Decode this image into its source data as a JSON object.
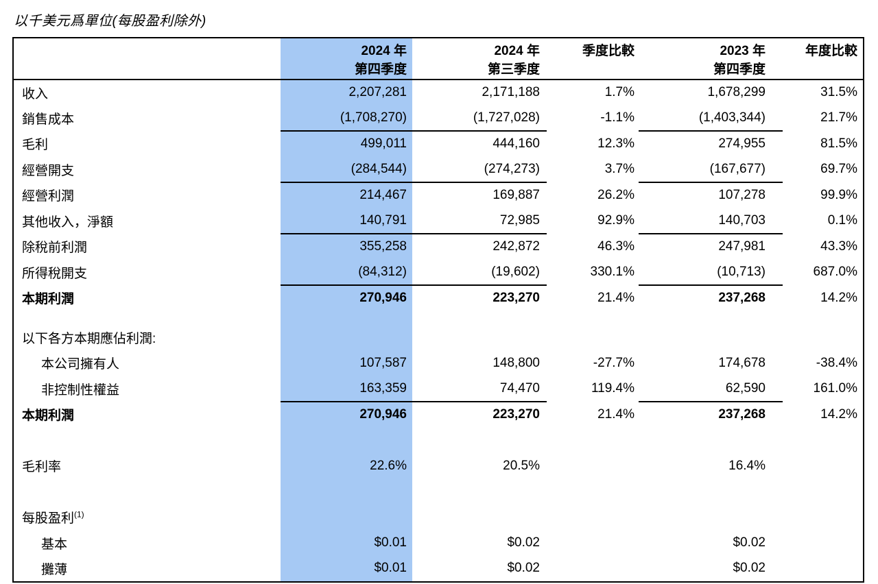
{
  "title": "以千美元爲單位(每股盈利除外)",
  "colors": {
    "highlight_column": "#a6c9f4",
    "border": "#000000",
    "text": "#000000"
  },
  "table": {
    "columns": [
      {
        "label": "2024 年",
        "sublabel": "第四季度"
      },
      {
        "label": "2024 年",
        "sublabel": "第三季度"
      },
      {
        "label": "季度比較",
        "sublabel": ""
      },
      {
        "label": "2023 年",
        "sublabel": "第四季度"
      },
      {
        "label": "年度比較",
        "sublabel": ""
      }
    ],
    "rows": [
      {
        "label": "收入",
        "values": [
          "2,207,281",
          "2,171,188",
          "1.7%",
          "1,678,299",
          "31.5%"
        ]
      },
      {
        "label": "銷售成本",
        "values": [
          "(1,708,270)",
          "(1,727,028)",
          "-1.1%",
          "(1,403,344)",
          "21.7%"
        ],
        "underline": true
      },
      {
        "label": "毛利",
        "values": [
          "499,011",
          "444,160",
          "12.3%",
          "274,955",
          "81.5%"
        ]
      },
      {
        "label": "經營開支",
        "values": [
          "(284,544)",
          "(274,273)",
          "3.7%",
          "(167,677)",
          "69.7%"
        ],
        "underline": true
      },
      {
        "label": "經營利潤",
        "values": [
          "214,467",
          "169,887",
          "26.2%",
          "107,278",
          "99.9%"
        ]
      },
      {
        "label": "其他收入，淨額",
        "values": [
          "140,791",
          "72,985",
          "92.9%",
          "140,703",
          "0.1%"
        ],
        "underline": true
      },
      {
        "label": "除稅前利潤",
        "values": [
          "355,258",
          "242,872",
          "46.3%",
          "247,981",
          "43.3%"
        ]
      },
      {
        "label": "所得稅開支",
        "values": [
          "(84,312)",
          "(19,602)",
          "330.1%",
          "(10,713)",
          "687.0%"
        ],
        "underline": true
      },
      {
        "label": "本期利潤",
        "values": [
          "270,946",
          "223,270",
          "21.4%",
          "237,268",
          "14.2%"
        ],
        "bold": true
      },
      {
        "type": "spacer",
        "small": true
      },
      {
        "label": "以下各方本期應佔利潤:",
        "values": [
          "",
          "",
          "",
          "",
          ""
        ]
      },
      {
        "label": "本公司擁有人",
        "values": [
          "107,587",
          "148,800",
          "-27.7%",
          "174,678",
          "-38.4%"
        ],
        "indent": true
      },
      {
        "label": "非控制性權益",
        "values": [
          "163,359",
          "74,470",
          "119.4%",
          "62,590",
          "161.0%"
        ],
        "indent": true,
        "underline": true
      },
      {
        "label": "本期利潤",
        "values": [
          "270,946",
          "223,270",
          "21.4%",
          "237,268",
          "14.2%"
        ],
        "bold": true
      },
      {
        "type": "spacer"
      },
      {
        "label": "毛利率",
        "values": [
          "22.6%",
          "20.5%",
          "",
          "16.4%",
          ""
        ]
      },
      {
        "type": "spacer"
      },
      {
        "label": "每股盈利",
        "sup": "(1)",
        "values": [
          "",
          "",
          "",
          "",
          ""
        ]
      },
      {
        "label": "基本",
        "values": [
          "$0.01",
          "$0.02",
          "",
          "$0.02",
          ""
        ],
        "indent": true
      },
      {
        "label": "攤薄",
        "values": [
          "$0.01",
          "$0.02",
          "",
          "$0.02",
          ""
        ],
        "indent": true
      }
    ]
  }
}
